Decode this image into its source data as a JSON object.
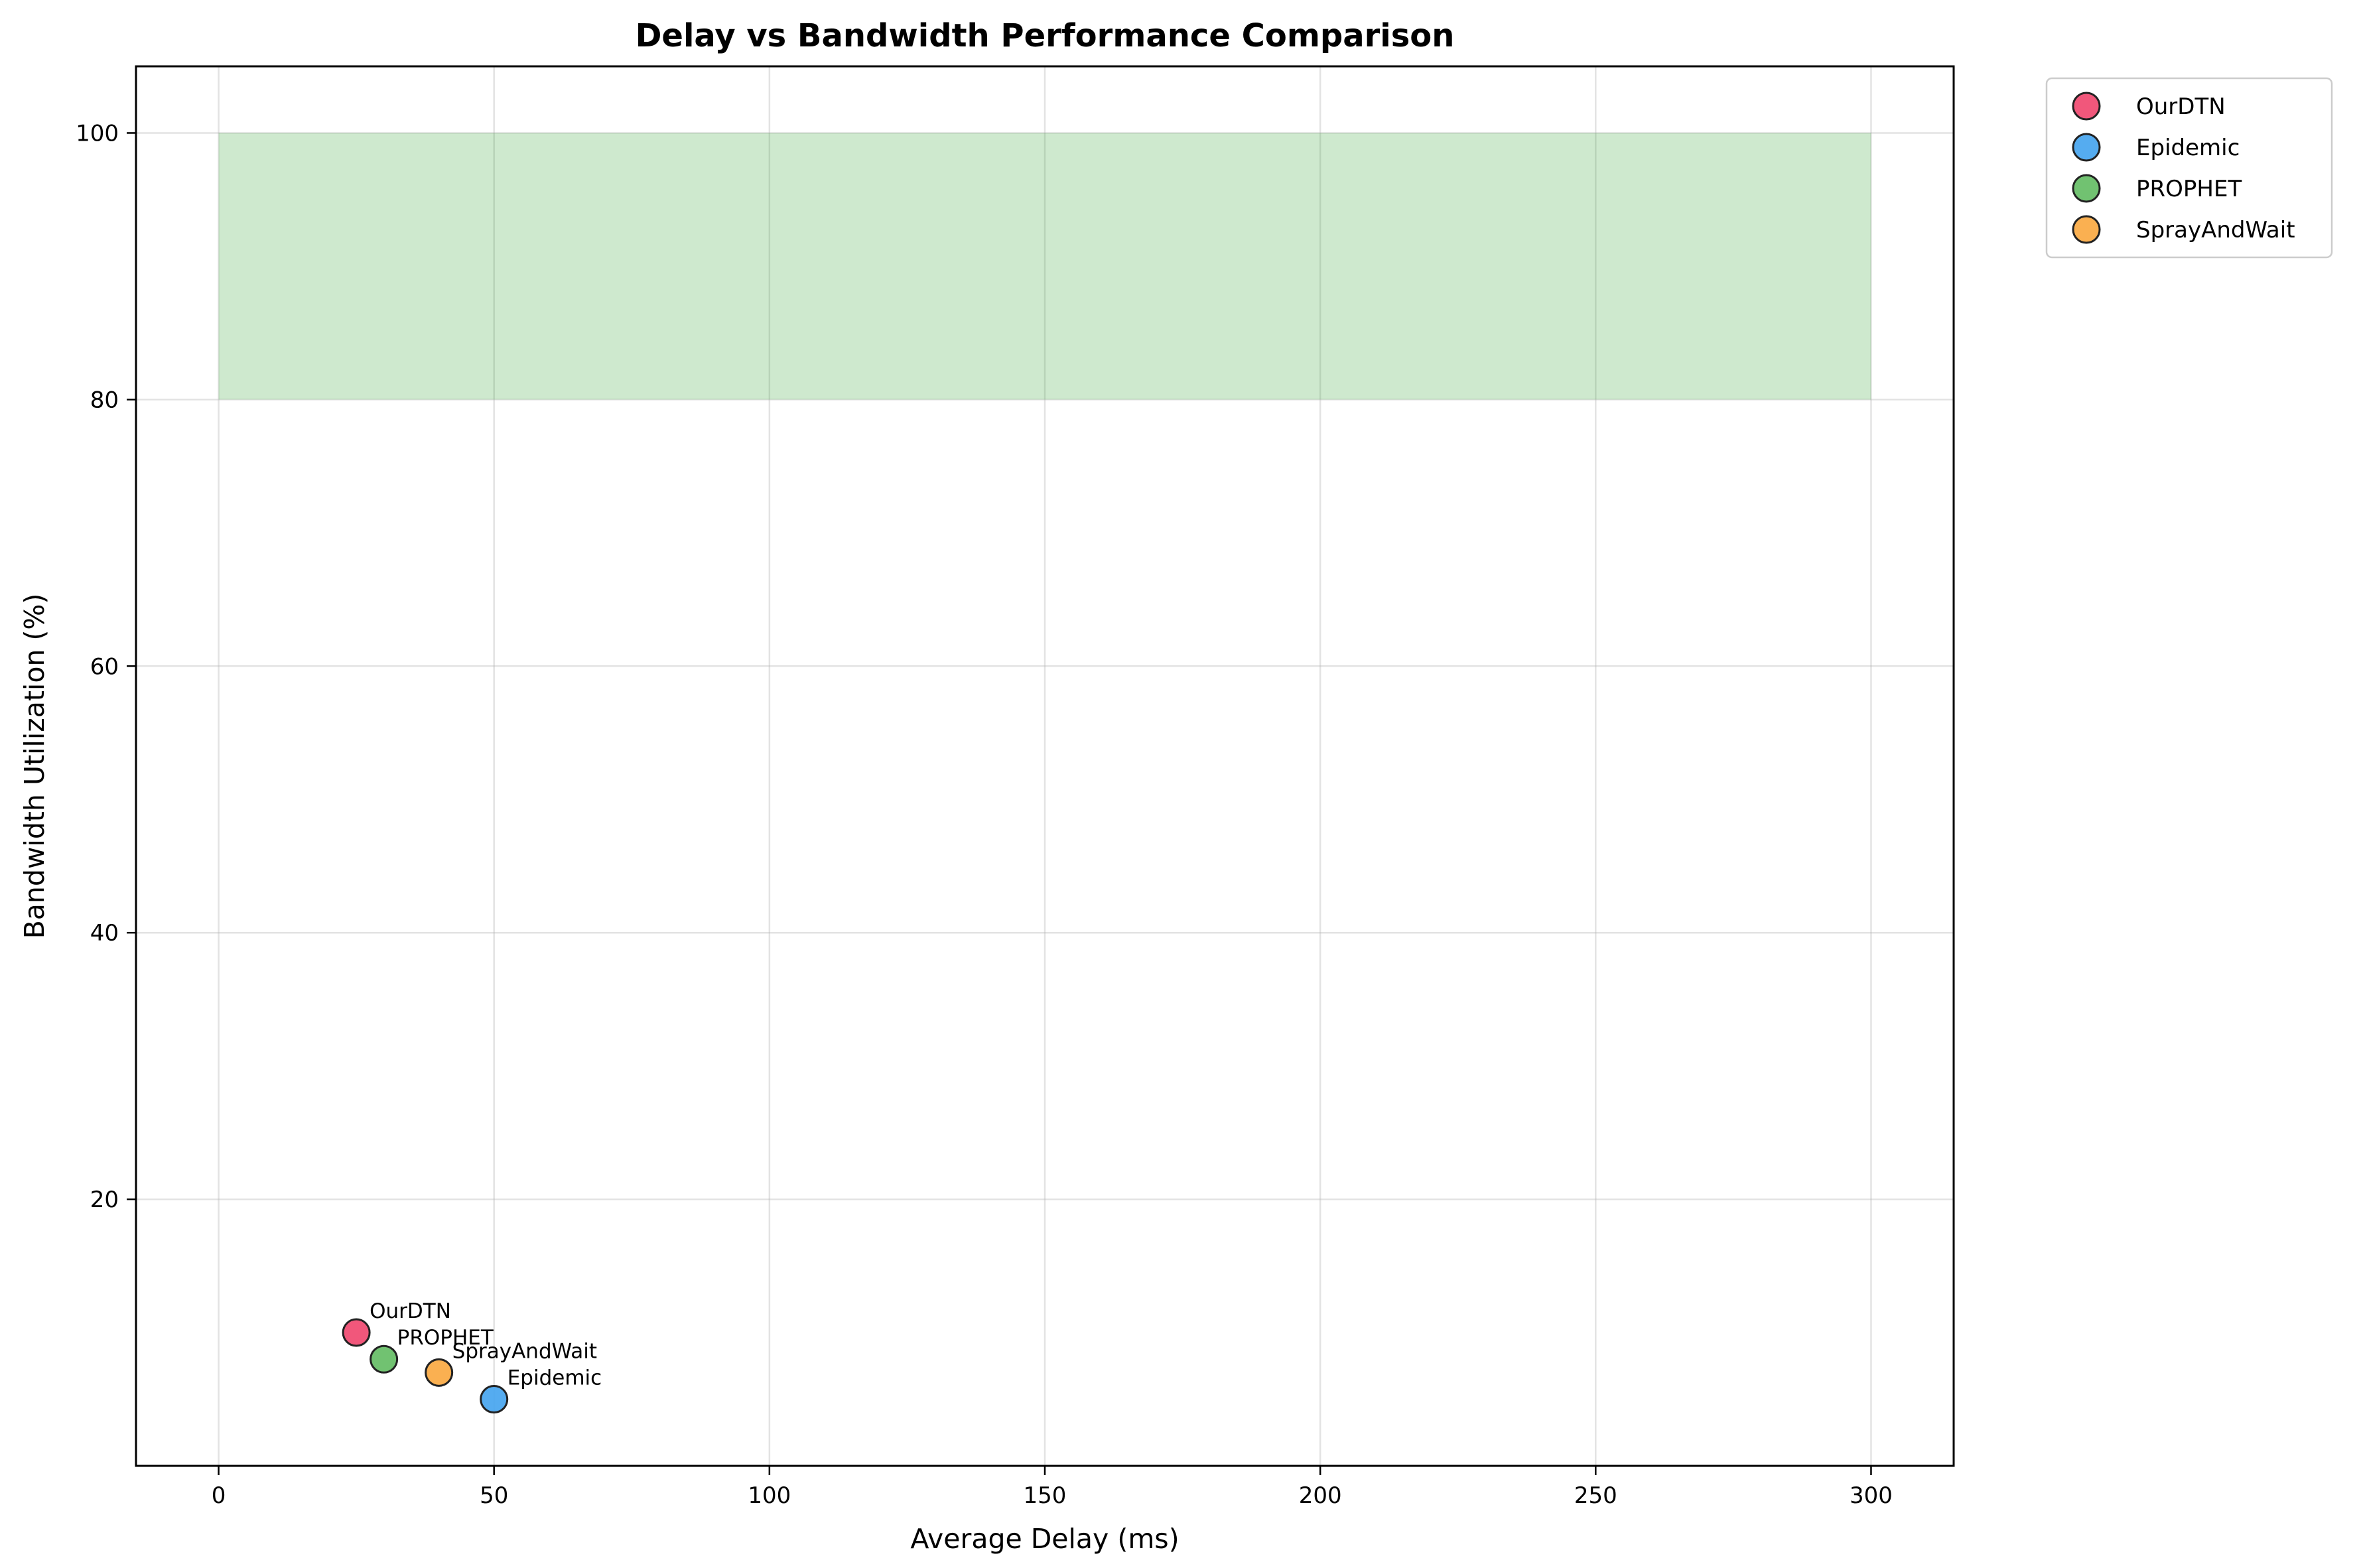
{
  "chart_data": {
    "type": "scatter",
    "title": "Delay vs Bandwidth Performance Comparison",
    "xlabel": "Average Delay (ms)",
    "ylabel": "Bandwidth Utilization (%)",
    "xlim": [
      -15,
      315
    ],
    "ylim": [
      0,
      105
    ],
    "xticks": [
      0,
      50,
      100,
      150,
      200,
      250,
      300
    ],
    "yticks": [
      20,
      40,
      60,
      80,
      100
    ],
    "grid": true,
    "legend_position": "outside-top-right",
    "region": {
      "x": [
        0,
        300
      ],
      "y": [
        80,
        100
      ],
      "color": "#2ca02c",
      "opacity": 0.23
    },
    "series": [
      {
        "name": "OurDTN",
        "x": 25,
        "y": 10,
        "color": "#f0456d",
        "label": "OurDTN"
      },
      {
        "name": "Epidemic",
        "x": 50,
        "y": 5,
        "color": "#42a3ee",
        "label": "Epidemic"
      },
      {
        "name": "PROPHET",
        "x": 30,
        "y": 8,
        "color": "#62bb62",
        "label": "PROPHET"
      },
      {
        "name": "SprayAndWait",
        "x": 40,
        "y": 7,
        "color": "#f9a73e",
        "label": "SprayAndWait"
      }
    ]
  }
}
